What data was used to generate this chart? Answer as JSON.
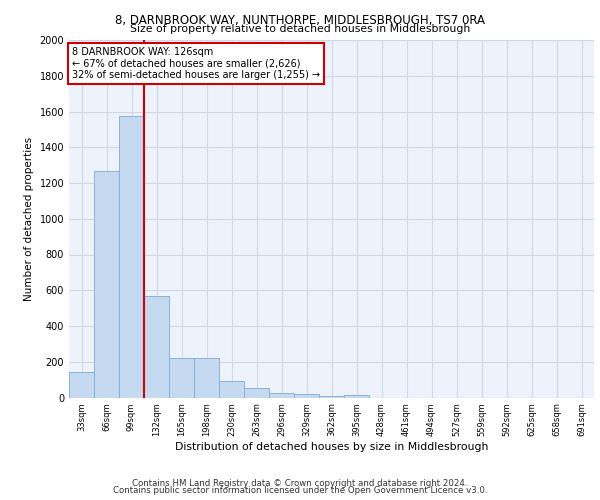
{
  "title1": "8, DARNBROOK WAY, NUNTHORPE, MIDDLESBROUGH, TS7 0RA",
  "title2": "Size of property relative to detached houses in Middlesbrough",
  "xlabel": "Distribution of detached houses by size in Middlesbrough",
  "ylabel": "Number of detached properties",
  "categories": [
    "33sqm",
    "66sqm",
    "99sqm",
    "132sqm",
    "165sqm",
    "198sqm",
    "230sqm",
    "263sqm",
    "296sqm",
    "329sqm",
    "362sqm",
    "395sqm",
    "428sqm",
    "461sqm",
    "494sqm",
    "527sqm",
    "559sqm",
    "592sqm",
    "625sqm",
    "658sqm",
    "691sqm"
  ],
  "values": [
    140,
    1265,
    1575,
    570,
    220,
    220,
    95,
    55,
    25,
    20,
    10,
    15,
    0,
    0,
    0,
    0,
    0,
    0,
    0,
    0,
    0
  ],
  "bar_color": "#c5d9f0",
  "bar_edge_color": "#7aacd6",
  "vline_color": "#cc0000",
  "vline_x": 2.5,
  "annotation_text": "8 DARNBROOK WAY: 126sqm\n← 67% of detached houses are smaller (2,626)\n32% of semi-detached houses are larger (1,255) →",
  "annotation_box_color": "#ffffff",
  "annotation_box_edge": "#cc0000",
  "grid_color": "#d0d8e8",
  "background_color": "#edf2fb",
  "footer1": "Contains HM Land Registry data © Crown copyright and database right 2024.",
  "footer2": "Contains public sector information licensed under the Open Government Licence v3.0.",
  "ylim": [
    0,
    2000
  ],
  "yticks": [
    0,
    200,
    400,
    600,
    800,
    1000,
    1200,
    1400,
    1600,
    1800,
    2000
  ]
}
